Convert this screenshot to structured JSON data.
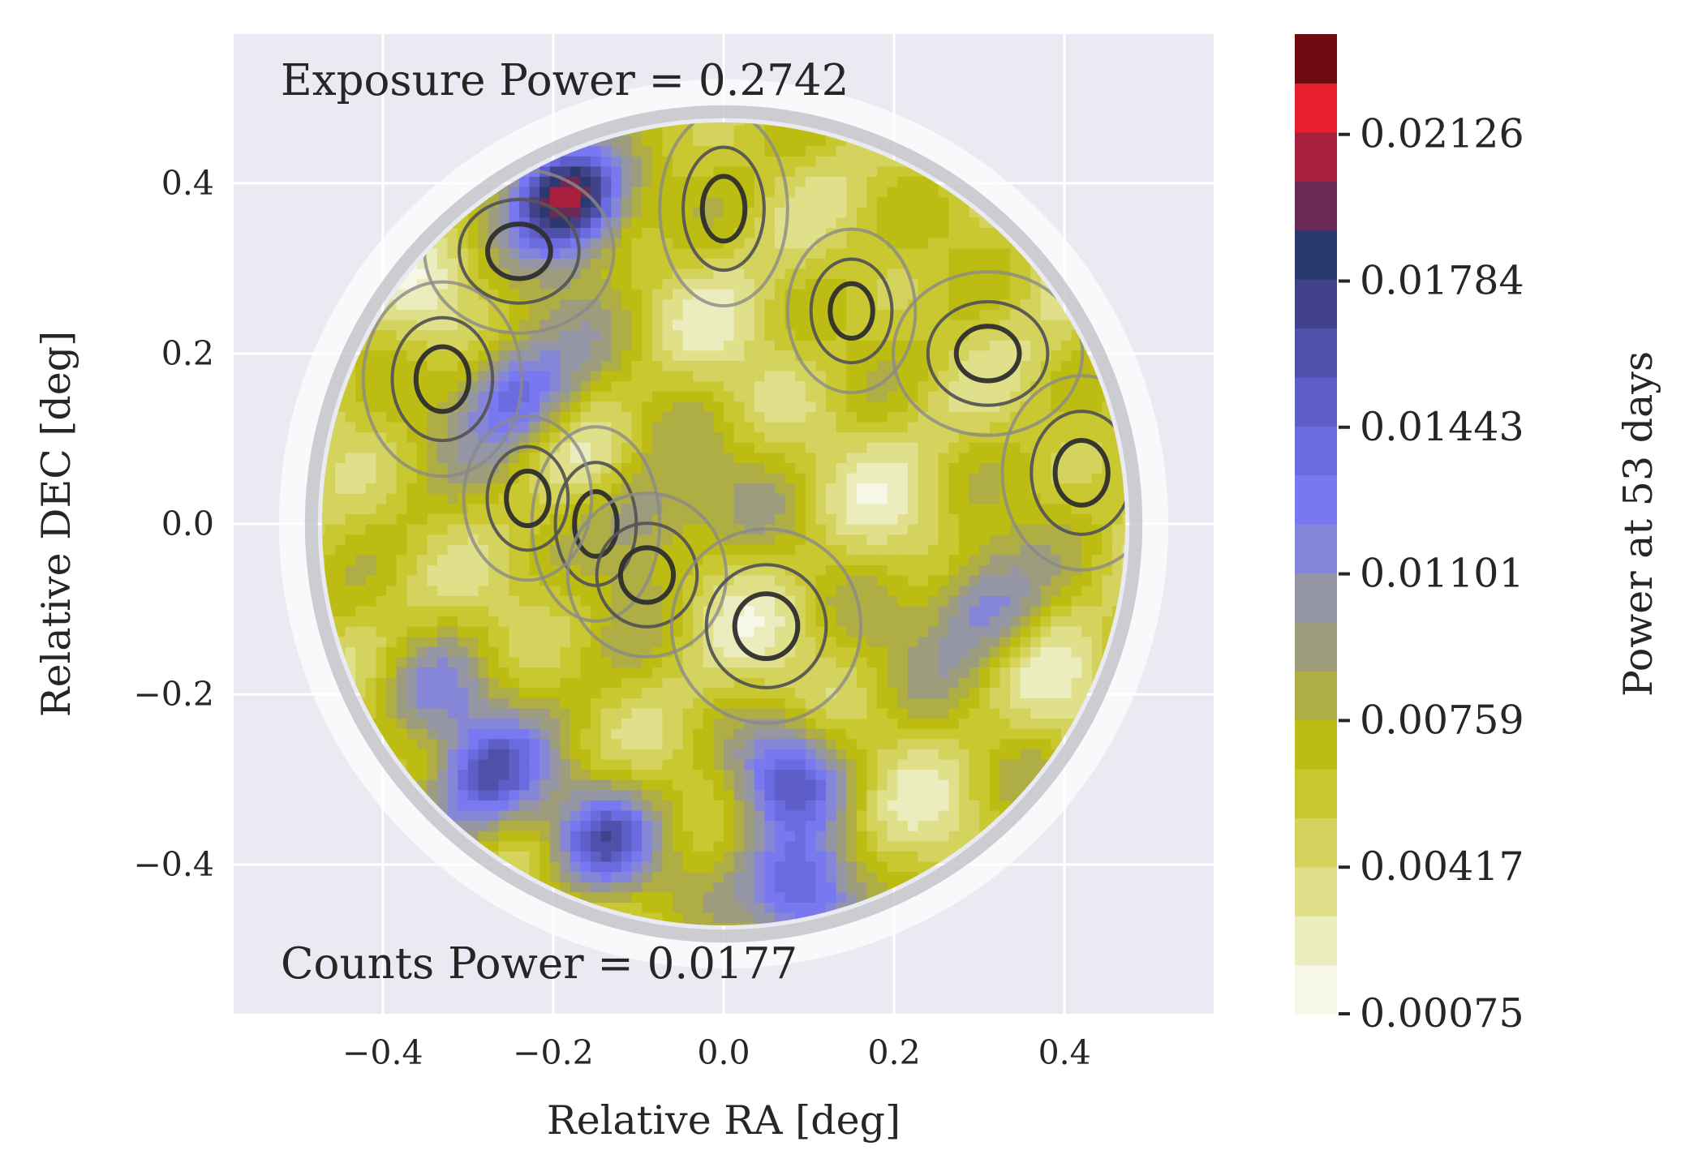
{
  "chart_data": {
    "type": "heatmap",
    "title": "",
    "xlabel": "Relative RA [deg]",
    "ylabel": "Relative DEC [deg]",
    "xlim": [
      -0.575,
      0.575
    ],
    "ylim": [
      -0.575,
      0.575
    ],
    "x_ticks": [
      -0.4,
      -0.2,
      0.0,
      0.2,
      0.4
    ],
    "x_tick_labels": [
      "−0.4",
      "−0.2",
      "0.0",
      "0.2",
      "0.4"
    ],
    "y_ticks": [
      0.4,
      0.2,
      0.0,
      -0.2,
      -0.4
    ],
    "y_tick_labels": [
      "0.4",
      "0.2",
      "0.0",
      "−0.2",
      "−0.4"
    ],
    "grid": true,
    "background": "#eaeaf2",
    "field_radius_deg": 0.48,
    "annotations": {
      "top": "Exposure Power = 0.2742",
      "bottom": "Counts Power = 0.0177"
    },
    "colorbar": {
      "label": "Power at 53 days",
      "range": [
        0.00075,
        0.0236
      ],
      "ticks": [
        0.00075,
        0.00417,
        0.00759,
        0.01101,
        0.01443,
        0.01784,
        0.02126
      ],
      "tick_labels": [
        "0.00075",
        "0.00417",
        "0.00759",
        "0.01101",
        "0.01443",
        "0.01784",
        "0.02126"
      ],
      "colors": [
        "#f6f7e6",
        "#ecedbe",
        "#e0df8a",
        "#d4d35e",
        "#c9c831",
        "#bdbc12",
        "#aeae44",
        "#9d9d7e",
        "#9496a6",
        "#8686d8",
        "#7878f0",
        "#6b6be0",
        "#5e5ec8",
        "#5050aa",
        "#42428a",
        "#2a3a70",
        "#6a2a55",
        "#a8203e",
        "#e81f2e",
        "#6e0a10"
      ]
    },
    "contour_color": "#3a3a3a",
    "heat_peaks": [
      {
        "x": -0.19,
        "y": 0.38,
        "power": 0.022
      },
      {
        "x": -0.25,
        "y": 0.15,
        "power": 0.0145
      },
      {
        "x": -0.28,
        "y": -0.3,
        "power": 0.0155
      },
      {
        "x": -0.15,
        "y": -0.38,
        "power": 0.0165
      },
      {
        "x": 0.07,
        "y": -0.3,
        "power": 0.0135
      },
      {
        "x": 0.3,
        "y": -0.1,
        "power": 0.0125
      },
      {
        "x": 0.09,
        "y": -0.44,
        "power": 0.016
      },
      {
        "x": -0.1,
        "y": 0.0,
        "power": 0.0115
      },
      {
        "x": -0.35,
        "y": -0.2,
        "power": 0.012
      }
    ],
    "contour_peaks": [
      {
        "x": 0.15,
        "y": 0.25
      },
      {
        "x": -0.33,
        "y": 0.17
      },
      {
        "x": 0.31,
        "y": 0.2
      },
      {
        "x": -0.15,
        "y": 0.0
      },
      {
        "x": -0.09,
        "y": -0.06
      },
      {
        "x": 0.05,
        "y": -0.12
      },
      {
        "x": -0.23,
        "y": 0.03
      },
      {
        "x": 0.42,
        "y": 0.06
      },
      {
        "x": -0.24,
        "y": 0.32
      },
      {
        "x": 0.0,
        "y": 0.37
      }
    ]
  }
}
